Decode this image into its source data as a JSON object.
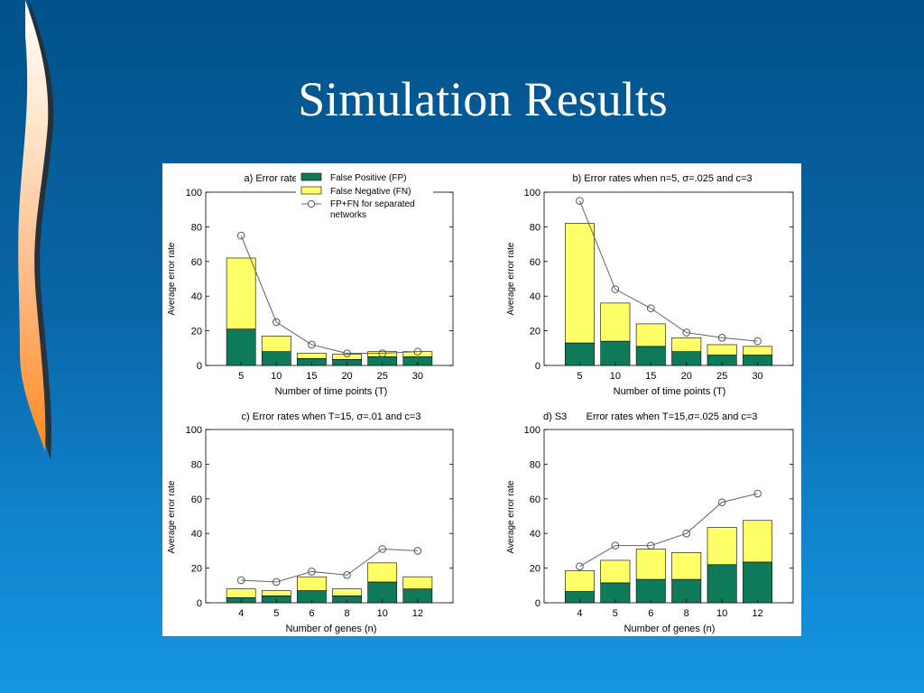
{
  "slide": {
    "title": "Simulation Results"
  },
  "colors": {
    "fp": "#0e7a5a",
    "fn": "#ffff66",
    "line": "#666666",
    "flame_light": "#ffe3c8",
    "flame_dark": "#ff8a1e"
  },
  "legend": {
    "fp": "False Positive (FP)",
    "fn": "False Negative (FN)",
    "line_1": "FP+FN for separated",
    "line_2": "networks"
  },
  "chart_data": [
    {
      "type": "bar",
      "stacked": true,
      "title": "a) Error rates when n=5, σ=.01 and c=3",
      "xlabel": "Number of time  points (T)",
      "ylabel": "Average error rate",
      "ylim": [
        0,
        100
      ],
      "yticks": [
        0,
        20,
        40,
        60,
        80,
        100
      ],
      "categories": [
        "5",
        "10",
        "15",
        "20",
        "25",
        "30"
      ],
      "series": [
        {
          "name": "False Positive (FP)",
          "values": [
            21,
            8,
            4,
            3.5,
            5,
            5
          ]
        },
        {
          "name": "False Negative (FN)",
          "values": [
            41,
            9,
            3,
            3,
            3,
            3
          ]
        }
      ],
      "line": {
        "name": "FP+FN for separated networks",
        "values": [
          75,
          25,
          12,
          7,
          7,
          8
        ]
      },
      "legend": "top-right"
    },
    {
      "type": "bar",
      "stacked": true,
      "title": "b) Error rates when n=5, σ=.025 and c=3",
      "xlabel": "Number of time  points (T)",
      "ylabel": "Average error rate",
      "ylim": [
        0,
        100
      ],
      "yticks": [
        0,
        20,
        40,
        60,
        80,
        100
      ],
      "categories": [
        "5",
        "10",
        "15",
        "20",
        "25",
        "30"
      ],
      "series": [
        {
          "name": "False Positive (FP)",
          "values": [
            13,
            14,
            11,
            8,
            6,
            6
          ]
        },
        {
          "name": "False Negative (FN)",
          "values": [
            69,
            22,
            13,
            8,
            6,
            5
          ]
        }
      ],
      "line": {
        "name": "FP+FN for separated networks",
        "values": [
          95,
          44,
          33,
          19,
          16,
          14
        ]
      }
    },
    {
      "type": "bar",
      "stacked": true,
      "title": "c) Error rates when T=15, σ=.01 and c=3",
      "xlabel": "Number of genes (n)",
      "ylabel": "Average error rate",
      "ylim": [
        0,
        100
      ],
      "yticks": [
        0,
        20,
        40,
        60,
        80,
        100
      ],
      "categories": [
        "4",
        "5",
        "6",
        "8",
        "10",
        "12"
      ],
      "series": [
        {
          "name": "False Positive (FP)",
          "values": [
            3,
            4,
            7,
            4,
            12,
            8
          ]
        },
        {
          "name": "False Negative (FN)",
          "values": [
            5,
            3,
            8,
            4,
            11,
            7
          ]
        }
      ],
      "line": {
        "name": "FP+FN for separated networks",
        "values": [
          13,
          12,
          18,
          16,
          31,
          30
        ]
      }
    },
    {
      "type": "bar",
      "stacked": true,
      "title": "d) S3       Error rates when T=15,σ=.025 and c=3",
      "xlabel": "Number of genes (n)",
      "ylabel": "Average error rate",
      "ylim": [
        0,
        100
      ],
      "yticks": [
        0,
        20,
        40,
        60,
        80,
        100
      ],
      "categories": [
        "4",
        "5",
        "6",
        "8",
        "10",
        "12"
      ],
      "series": [
        {
          "name": "False Positive (FP)",
          "values": [
            6.5,
            11.5,
            13.5,
            13.5,
            22,
            23.5
          ]
        },
        {
          "name": "False Negative (FN)",
          "values": [
            12,
            13,
            17.5,
            15.5,
            21.5,
            24
          ]
        }
      ],
      "line": {
        "name": "FP+FN for separated networks",
        "values": [
          21,
          33,
          33,
          40,
          58,
          63
        ]
      }
    }
  ]
}
